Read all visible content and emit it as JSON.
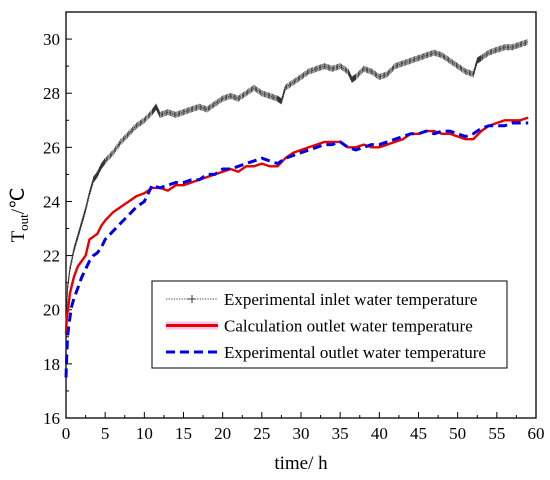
{
  "chart_data": {
    "type": "line",
    "title": "",
    "xlabel": "time/ h",
    "ylabel_main": "T",
    "ylabel_sub": "out",
    "ylabel_unit": "/℃",
    "xlim": [
      0,
      60
    ],
    "ylim": [
      16,
      31
    ],
    "xticks": [
      0,
      5,
      10,
      15,
      20,
      25,
      30,
      35,
      40,
      45,
      50,
      55,
      60
    ],
    "yticks": [
      16,
      18,
      20,
      22,
      24,
      26,
      28,
      30
    ],
    "grid": false,
    "legend_position": "lower-right",
    "series": [
      {
        "name": "Experimental inlet water temperature",
        "color": "#333333",
        "style": "dotted-plus",
        "x": [
          0,
          0.2,
          0.5,
          1,
          1.5,
          2,
          2.5,
          3,
          3.5,
          4,
          4.5,
          5,
          6,
          7,
          8,
          9,
          10,
          11,
          11.5,
          12,
          13,
          14,
          15,
          16,
          17,
          18,
          19,
          20,
          21,
          22,
          23,
          24,
          25,
          26,
          27,
          27.5,
          28,
          29,
          30,
          31,
          32,
          33,
          34,
          35,
          36,
          36.5,
          37,
          38,
          39,
          40,
          41,
          42,
          43,
          44,
          45,
          46,
          47,
          48,
          49,
          50,
          51,
          52,
          52.5,
          53,
          54,
          55,
          56,
          57,
          58,
          59
        ],
        "values": [
          19.4,
          20.8,
          21.5,
          22.2,
          22.7,
          23.2,
          23.7,
          24.3,
          24.8,
          25.0,
          25.3,
          25.5,
          25.8,
          26.2,
          26.5,
          26.8,
          27.0,
          27.3,
          27.5,
          27.2,
          27.3,
          27.2,
          27.3,
          27.4,
          27.5,
          27.4,
          27.6,
          27.8,
          27.9,
          27.8,
          28.0,
          28.2,
          28.0,
          27.9,
          27.8,
          27.7,
          28.2,
          28.4,
          28.6,
          28.8,
          28.9,
          29.0,
          28.9,
          29.0,
          28.8,
          28.5,
          28.6,
          28.9,
          28.8,
          28.6,
          28.7,
          29.0,
          29.1,
          29.2,
          29.3,
          29.4,
          29.5,
          29.4,
          29.2,
          29.0,
          28.8,
          28.7,
          29.2,
          29.3,
          29.5,
          29.6,
          29.7,
          29.7,
          29.8,
          29.9
        ]
      },
      {
        "name": "Calculation outlet water temperature",
        "color": "#e60000",
        "style": "solid",
        "x": [
          0,
          0.1,
          0.3,
          0.5,
          1,
          1.5,
          2,
          2.5,
          3,
          3.5,
          4,
          4.5,
          5,
          6,
          7,
          8,
          9,
          10,
          11,
          12,
          13,
          14,
          15,
          16,
          17,
          18,
          19,
          20,
          21,
          22,
          23,
          24,
          25,
          26,
          27,
          28,
          29,
          30,
          31,
          32,
          33,
          34,
          35,
          36,
          37,
          38,
          39,
          40,
          41,
          42,
          43,
          44,
          45,
          46,
          47,
          48,
          49,
          50,
          51,
          52,
          53,
          54,
          55,
          56,
          57,
          58,
          59
        ],
        "values": [
          19.1,
          19.7,
          20.1,
          20.6,
          21.2,
          21.6,
          21.8,
          22.0,
          22.6,
          22.7,
          22.8,
          23.1,
          23.3,
          23.6,
          23.8,
          24.0,
          24.2,
          24.3,
          24.5,
          24.5,
          24.4,
          24.6,
          24.6,
          24.7,
          24.8,
          24.9,
          25.0,
          25.1,
          25.2,
          25.1,
          25.3,
          25.3,
          25.4,
          25.3,
          25.3,
          25.6,
          25.8,
          25.9,
          26.0,
          26.1,
          26.2,
          26.2,
          26.2,
          26.0,
          26.0,
          26.1,
          26.0,
          26.0,
          26.1,
          26.2,
          26.3,
          26.5,
          26.5,
          26.6,
          26.6,
          26.5,
          26.5,
          26.4,
          26.3,
          26.3,
          26.6,
          26.8,
          26.9,
          27.0,
          27.0,
          27.0,
          27.1
        ]
      },
      {
        "name": "Experimental outlet water temperature",
        "color": "#0000e6",
        "style": "dashed",
        "x": [
          0,
          0.1,
          0.2,
          0.4,
          0.7,
          1,
          1.5,
          2,
          2.5,
          3,
          3.5,
          4,
          4.5,
          5,
          6,
          7,
          8,
          9,
          10,
          11,
          12,
          13,
          14,
          15,
          16,
          17,
          18,
          19,
          20,
          21,
          22,
          23,
          24,
          25,
          26,
          27,
          28,
          29,
          30,
          31,
          32,
          33,
          34,
          35,
          36,
          37,
          38,
          39,
          40,
          41,
          42,
          43,
          44,
          45,
          46,
          47,
          48,
          49,
          50,
          51,
          52,
          53,
          54,
          55,
          56,
          57,
          58,
          59
        ],
        "values": [
          17.5,
          18.4,
          19.0,
          19.5,
          20.1,
          20.4,
          20.8,
          21.2,
          21.5,
          21.8,
          22.0,
          22.1,
          22.3,
          22.6,
          22.9,
          23.2,
          23.5,
          23.8,
          24.0,
          24.6,
          24.5,
          24.6,
          24.7,
          24.7,
          24.8,
          24.8,
          25.0,
          25.0,
          25.2,
          25.2,
          25.3,
          25.4,
          25.5,
          25.6,
          25.5,
          25.4,
          25.6,
          25.7,
          25.8,
          25.9,
          26.0,
          26.1,
          26.1,
          26.2,
          26.0,
          25.9,
          26.0,
          26.1,
          26.1,
          26.2,
          26.3,
          26.4,
          26.5,
          26.5,
          26.6,
          26.5,
          26.6,
          26.6,
          26.5,
          26.4,
          26.5,
          26.7,
          26.8,
          26.8,
          26.8,
          26.9,
          26.9,
          26.9
        ]
      }
    ]
  }
}
